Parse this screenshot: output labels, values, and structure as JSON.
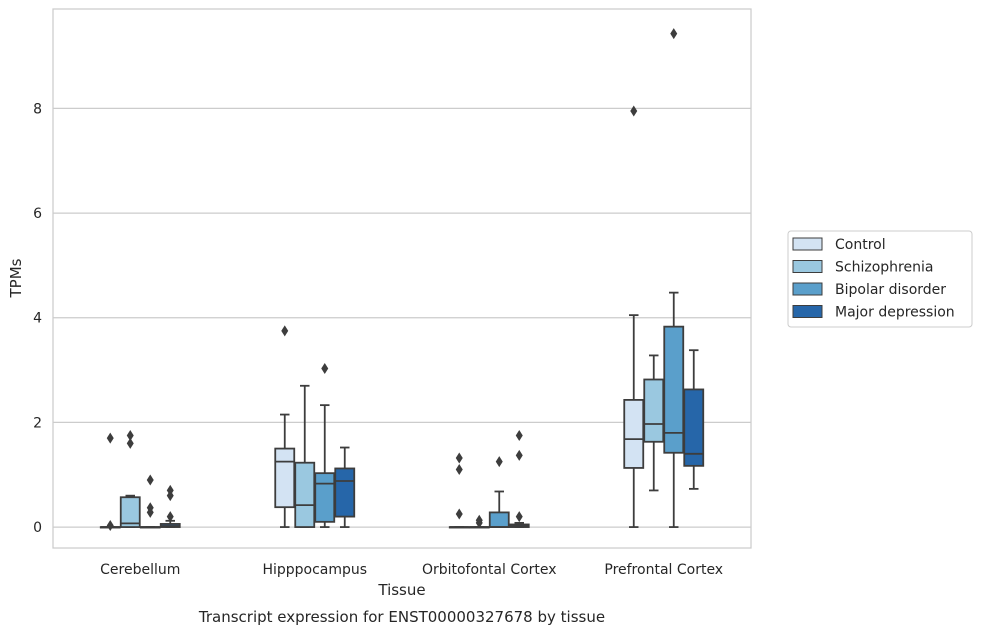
{
  "chart_data": {
    "type": "box",
    "title": "Transcript expression for ENST00000327678 by tissue",
    "xlabel": "Tissue",
    "ylabel": "TPMs",
    "ylim": [
      -0.4,
      9.9
    ],
    "yticks": [
      0,
      2,
      4,
      6,
      8
    ],
    "grid": "horizontal",
    "legend_position": "right",
    "categories": [
      "Cerebellum",
      "Hipppocampus",
      "Orbitofontal Cortex",
      "Prefrontal Cortex"
    ],
    "series": [
      {
        "name": "Control",
        "color": "#d3e3f3",
        "boxes": [
          {
            "whisker_low": 0,
            "q1": 0,
            "median": 0,
            "q3": 0,
            "whisker_high": 0,
            "outliers": [
              1.7,
              0.03
            ]
          },
          {
            "whisker_low": 0,
            "q1": 0.38,
            "median": 1.25,
            "q3": 1.5,
            "whisker_high": 2.15,
            "outliers": [
              3.75
            ]
          },
          {
            "whisker_low": 0,
            "q1": 0,
            "median": 0,
            "q3": 0,
            "whisker_high": 0,
            "outliers": [
              1.32,
              1.1,
              0.25
            ]
          },
          {
            "whisker_low": 0,
            "q1": 1.13,
            "median": 1.68,
            "q3": 2.43,
            "whisker_high": 4.05,
            "outliers": [
              7.95
            ]
          }
        ]
      },
      {
        "name": "Schizophrenia",
        "color": "#9ac8e0",
        "boxes": [
          {
            "whisker_low": 0,
            "q1": 0,
            "median": 0.07,
            "q3": 0.57,
            "whisker_high": 0.6,
            "outliers": [
              1.75,
              1.6
            ]
          },
          {
            "whisker_low": 0,
            "q1": 0,
            "median": 0.42,
            "q3": 1.23,
            "whisker_high": 2.7,
            "outliers": []
          },
          {
            "whisker_low": 0,
            "q1": 0,
            "median": 0,
            "q3": 0,
            "whisker_high": 0,
            "outliers": [
              0.13,
              0.08
            ]
          },
          {
            "whisker_low": 0.7,
            "q1": 1.63,
            "median": 1.97,
            "q3": 2.82,
            "whisker_high": 3.28,
            "outliers": []
          }
        ]
      },
      {
        "name": "Bipolar disorder",
        "color": "#5a9fcb",
        "boxes": [
          {
            "whisker_low": 0,
            "q1": 0,
            "median": 0,
            "q3": 0,
            "whisker_high": 0,
            "outliers": [
              0.9,
              0.37,
              0.28
            ]
          },
          {
            "whisker_low": 0,
            "q1": 0.1,
            "median": 0.83,
            "q3": 1.03,
            "whisker_high": 2.33,
            "outliers": [
              3.03
            ]
          },
          {
            "whisker_low": 0,
            "q1": 0,
            "median": 0,
            "q3": 0.28,
            "whisker_high": 0.68,
            "outliers": [
              1.25
            ]
          },
          {
            "whisker_low": 0,
            "q1": 1.42,
            "median": 1.8,
            "q3": 3.83,
            "whisker_high": 4.48,
            "outliers": [
              9.43
            ]
          }
        ]
      },
      {
        "name": "Major depression",
        "color": "#2666a9",
        "boxes": [
          {
            "whisker_low": 0,
            "q1": 0,
            "median": 0.02,
            "q3": 0.06,
            "whisker_high": 0.12,
            "outliers": [
              0.7,
              0.6,
              0.2
            ]
          },
          {
            "whisker_low": 0,
            "q1": 0.2,
            "median": 0.88,
            "q3": 1.12,
            "whisker_high": 1.52,
            "outliers": []
          },
          {
            "whisker_low": 0,
            "q1": 0,
            "median": 0.02,
            "q3": 0.05,
            "whisker_high": 0.08,
            "outliers": [
              1.75,
              1.37,
              0.2
            ]
          },
          {
            "whisker_low": 0.73,
            "q1": 1.17,
            "median": 1.4,
            "q3": 2.63,
            "whisker_high": 3.38,
            "outliers": []
          }
        ]
      }
    ]
  }
}
